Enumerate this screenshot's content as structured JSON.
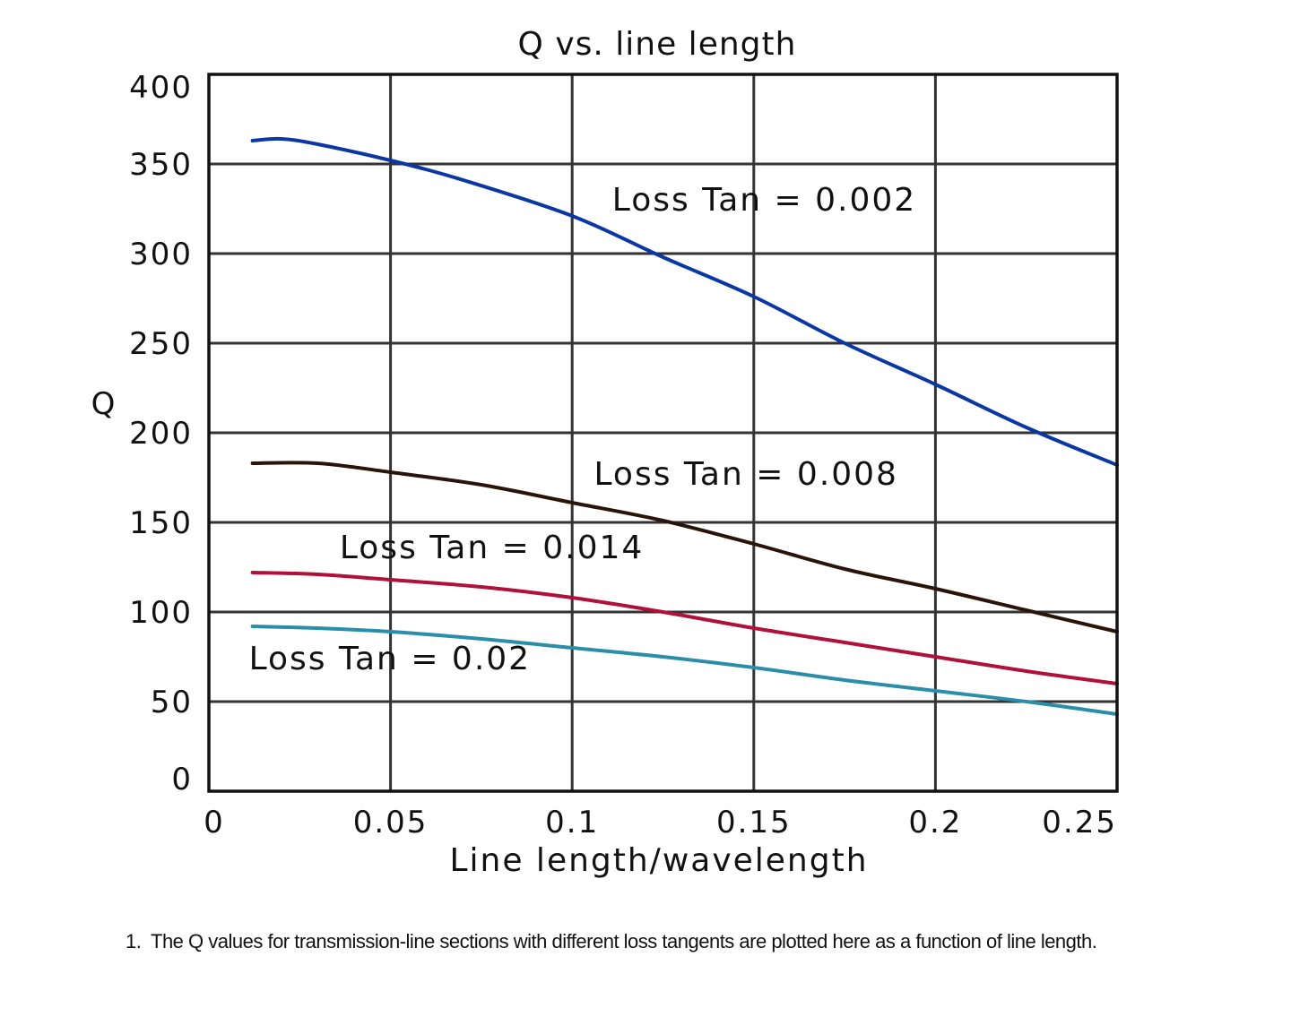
{
  "chart_data": {
    "type": "line",
    "title": "Q vs. line length",
    "xlabel": "Line length/wavelength",
    "ylabel": "Q",
    "xlim": [
      0,
      0.25
    ],
    "ylim": [
      0,
      400
    ],
    "x_ticks": [
      "0",
      "0.05",
      "0.1",
      "0.15",
      "0.2",
      "0.25"
    ],
    "x_tick_values": [
      0,
      0.05,
      0.1,
      0.15,
      0.2,
      0.25
    ],
    "y_ticks": [
      "0",
      "50",
      "100",
      "150",
      "200",
      "250",
      "300",
      "350",
      "400"
    ],
    "y_tick_values": [
      0,
      50,
      100,
      150,
      200,
      250,
      300,
      350,
      400
    ],
    "grid": true,
    "series": [
      {
        "name": "Loss Tan = 0.002",
        "color": "#0a36a6",
        "x": [
          0.012,
          0.02,
          0.03,
          0.05,
          0.07,
          0.1,
          0.125,
          0.15,
          0.175,
          0.2,
          0.225,
          0.25
        ],
        "y": [
          363,
          364,
          361,
          352,
          341,
          321,
          298,
          276,
          250,
          227,
          203,
          182
        ]
      },
      {
        "name": "Loss Tan = 0.008",
        "color": "#2a1408",
        "x": [
          0.012,
          0.03,
          0.05,
          0.075,
          0.1,
          0.125,
          0.15,
          0.175,
          0.2,
          0.225,
          0.25
        ],
        "y": [
          183,
          183,
          178,
          171,
          161,
          151,
          138,
          124,
          113,
          101,
          89
        ]
      },
      {
        "name": "Loss Tan = 0.014",
        "color": "#b0103a",
        "x": [
          0.012,
          0.03,
          0.05,
          0.075,
          0.1,
          0.125,
          0.15,
          0.175,
          0.2,
          0.225,
          0.25
        ],
        "y": [
          122,
          121,
          118,
          114,
          108,
          100,
          91,
          83,
          75,
          67,
          60
        ]
      },
      {
        "name": "Loss Tan = 0.02",
        "color": "#2a8ea8",
        "x": [
          0.012,
          0.03,
          0.05,
          0.075,
          0.1,
          0.125,
          0.15,
          0.175,
          0.2,
          0.225,
          0.25
        ],
        "y": [
          92,
          91,
          89,
          85,
          80,
          75,
          69,
          62,
          56,
          50,
          43
        ]
      }
    ],
    "annotations": [
      {
        "text": "Loss Tan = 0.002",
        "x": 0.111,
        "y": 324
      },
      {
        "text": "Loss Tan = 0.008",
        "x": 0.106,
        "y": 171
      },
      {
        "text": "Loss Tan = 0.014",
        "x": 0.036,
        "y": 130
      },
      {
        "text": "Loss Tan = 0.02",
        "x": 0.011,
        "y": 68
      }
    ]
  },
  "caption": {
    "number": "1.",
    "text": "The Q values for transmission-line sections with different loss tangents are plotted here as a function of line length."
  }
}
